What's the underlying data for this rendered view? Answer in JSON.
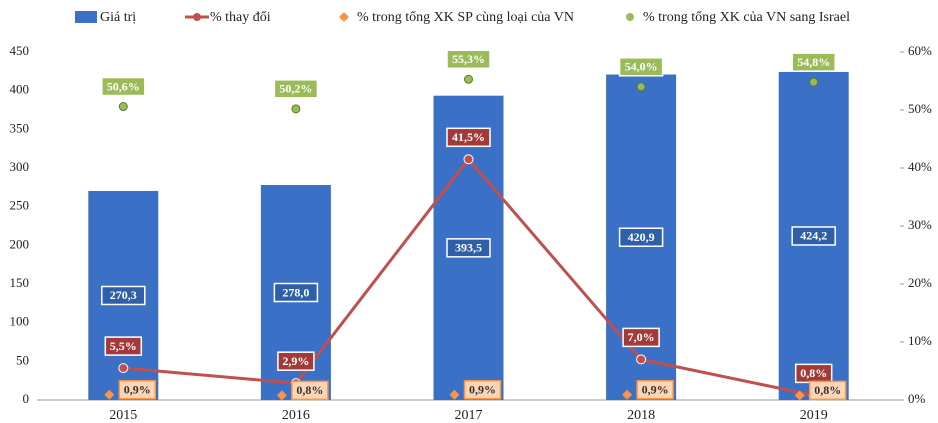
{
  "chart_data": {
    "type": "bar",
    "categories": [
      "2015",
      "2016",
      "2017",
      "2018",
      "2019"
    ],
    "ylim": [
      0,
      450
    ],
    "yticks": [
      0,
      50,
      100,
      150,
      200,
      250,
      300,
      350,
      400,
      450
    ],
    "y2lim": [
      0,
      60
    ],
    "y2ticks": [
      {
        "value": 0,
        "label": "0%"
      },
      {
        "value": 10,
        "label": "10%"
      },
      {
        "value": 20,
        "label": "20%"
      },
      {
        "value": 30,
        "label": "30%"
      },
      {
        "value": 40,
        "label": "40%"
      },
      {
        "value": 50,
        "label": "50%"
      },
      {
        "value": 60,
        "label": "60%"
      }
    ],
    "legend": "top",
    "series": [
      {
        "name": "Giá trị",
        "type": "bar",
        "color": "#3a70c6",
        "values": [
          270.3,
          278.0,
          393.5,
          420.9,
          424.2
        ],
        "value_labels": [
          "270,3",
          "278,0",
          "393,5",
          "420,9",
          "424,2"
        ]
      },
      {
        "name": "% thay đổi",
        "type": "line",
        "axis": "y2",
        "color": "#c0504d",
        "values": [
          5.5,
          2.9,
          41.5,
          7.0,
          0.8
        ],
        "value_labels": [
          "5,5%",
          "2,9%",
          "41,5%",
          "7,0%",
          "0,8%"
        ]
      },
      {
        "name": "% trong tổng XK SP cùng loại của VN",
        "type": "scatter",
        "marker": "diamond",
        "axis": "y2",
        "color": "#f79646",
        "values": [
          0.9,
          0.8,
          0.9,
          0.9,
          0.8
        ],
        "value_labels": [
          "0,9%",
          "0,8%",
          "0,9%",
          "0,9%",
          "0,8%"
        ]
      },
      {
        "name": "% trong tổng XK của VN sang Israel",
        "type": "scatter",
        "marker": "circle",
        "axis": "y2",
        "color": "#9bbb59",
        "values": [
          50.6,
          50.2,
          55.3,
          54.0,
          54.8
        ],
        "value_labels": [
          "50,6%",
          "50,2%",
          "55,3%",
          "54,0%",
          "54,8%"
        ]
      }
    ]
  }
}
